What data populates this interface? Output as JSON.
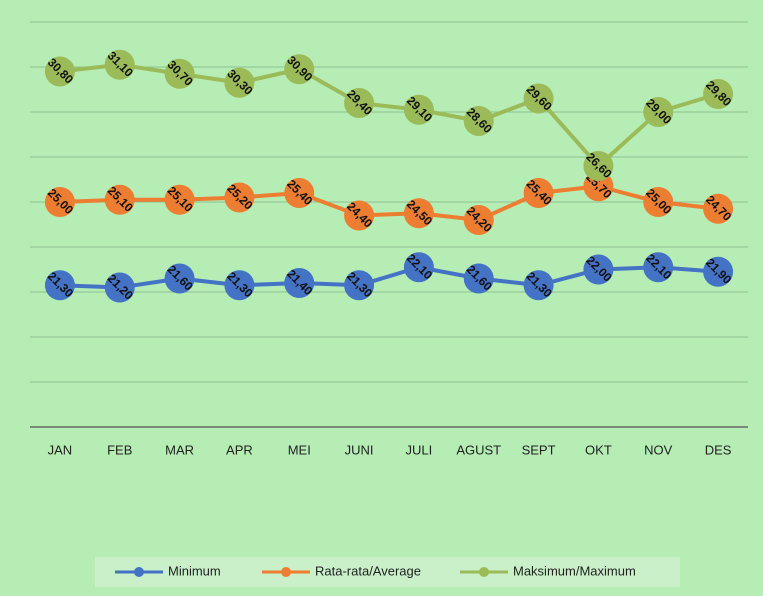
{
  "chart_data": {
    "type": "line",
    "categories": [
      "JAN",
      "FEB",
      "MAR",
      "APR",
      "MEI",
      "JUNI",
      "JULI",
      "AGUST",
      "SEPT",
      "OKT",
      "NOV",
      "DES"
    ],
    "series": [
      {
        "name": "Minimum",
        "color": "#4472c4",
        "values": [
          21.3,
          21.2,
          21.6,
          21.3,
          21.4,
          21.3,
          22.1,
          21.6,
          21.3,
          22.0,
          22.1,
          21.9
        ],
        "value_labels": [
          "21,30",
          "21,20",
          "21,60",
          "21,30",
          "21,40",
          "21,30",
          "22,10",
          "21,60",
          "21,30",
          "22,00",
          "22,10",
          "21,90"
        ]
      },
      {
        "name": "Rata-rata/Average",
        "color": "#ed7d31",
        "values": [
          25.0,
          25.1,
          25.1,
          25.2,
          25.4,
          24.4,
          24.5,
          24.2,
          25.4,
          25.7,
          25.0,
          24.7
        ],
        "value_labels": [
          "25,00",
          "25,10",
          "25,10",
          "25,20",
          "25,40",
          "24,40",
          "24,50",
          "24,20",
          "25,40",
          "25,70",
          "25,00",
          "24,70"
        ]
      },
      {
        "name": "Maksimum/Maximum",
        "color": "#9bbb59",
        "values": [
          30.8,
          31.1,
          30.7,
          30.3,
          30.9,
          29.4,
          29.1,
          28.6,
          29.6,
          26.6,
          29.0,
          29.8
        ],
        "value_labels": [
          "30,80",
          "31,10",
          "30,70",
          "30,30",
          "30,90",
          "29,40",
          "29,10",
          "28,60",
          "29,60",
          "26,60",
          "29,00",
          "29,80"
        ]
      }
    ],
    "ylim": [
      15,
      33
    ],
    "yticks": [
      17,
      19,
      21,
      23,
      25,
      27,
      29,
      31,
      33
    ],
    "grid": true,
    "legend": "bottom"
  }
}
